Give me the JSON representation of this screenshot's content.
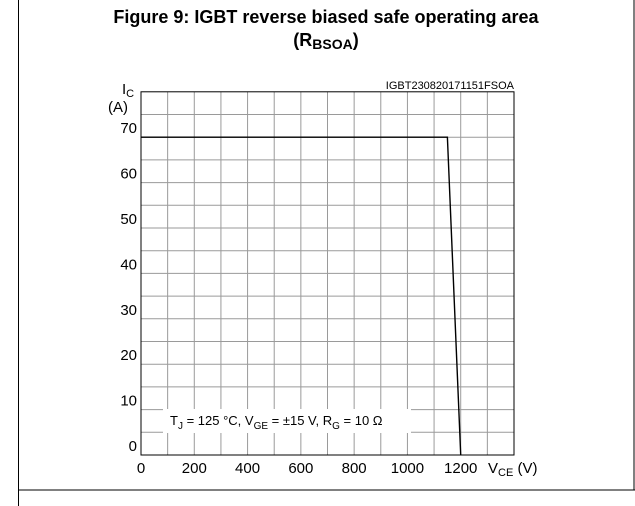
{
  "chart_data": {
    "type": "line",
    "title": "Figure 9: IGBT reverse biased safe operating area",
    "title_line2": [
      "(R",
      "BSOA",
      ")"
    ],
    "code": "IGBT230820171151FSOA",
    "ylabel": [
      "I",
      "C",
      "(A)"
    ],
    "xlabel": [
      "V",
      "CE",
      " (V)"
    ],
    "annotation": [
      "T",
      "J",
      " = 125 °C, V",
      "GE",
      " = ±15 V, R",
      "G",
      " = 10 Ω"
    ],
    "x": [
      0,
      1150,
      1200
    ],
    "series": [
      {
        "color": "#000000",
        "values": [
          70,
          70,
          0
        ]
      }
    ],
    "xlim": [
      0,
      1400
    ],
    "ylim": [
      0,
      80
    ],
    "xticks": [
      0,
      200,
      400,
      600,
      800,
      1000,
      1200
    ],
    "yticks": [
      0,
      10,
      20,
      30,
      40,
      50,
      60,
      70
    ],
    "xminorticks": [
      100,
      300,
      500,
      700,
      900,
      1100,
      1300
    ],
    "yminorticks": [
      5,
      15,
      25,
      35,
      45,
      55,
      65,
      75
    ],
    "grid": true
  }
}
